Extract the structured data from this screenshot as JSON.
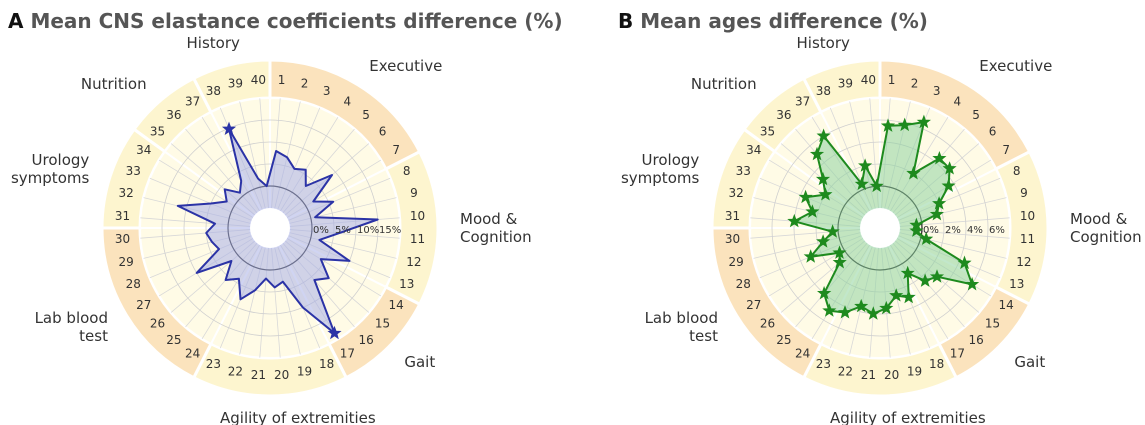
{
  "chart_data": [
    {
      "type": "radar",
      "panel": "A",
      "title": "Mean CNS elastance coefficients difference (%)",
      "categories": [
        "1",
        "2",
        "3",
        "4",
        "5",
        "6",
        "7",
        "8",
        "9",
        "10",
        "11",
        "12",
        "13",
        "14",
        "15",
        "16",
        "17",
        "18",
        "19",
        "20",
        "21",
        "22",
        "23",
        "24",
        "25",
        "26",
        "27",
        "28",
        "29",
        "30",
        "31",
        "32",
        "33",
        "34",
        "35",
        "36",
        "37",
        "38",
        "39",
        "40"
      ],
      "values": [
        8,
        7,
        5,
        6,
        3,
        9,
        2,
        6,
        1,
        15,
        6,
        2,
        10,
        4,
        8,
        6,
        18.5,
        10,
        3,
        4,
        2,
        5,
        8,
        4,
        6,
        2,
        10,
        3,
        4,
        5,
        3,
        12,
        5,
        2,
        4,
        1,
        3,
        14.8,
        2,
        0
      ],
      "color": "#2b33a6",
      "fill": "#aab1e8",
      "starred": [
        "17",
        "38"
      ],
      "ylim": [
        -5,
        20
      ],
      "yticks": [
        {
          "value": 0,
          "label": "0%"
        },
        {
          "value": 5,
          "label": "5%"
        },
        {
          "value": 10,
          "label": "10%"
        },
        {
          "value": 15,
          "label": "15%"
        }
      ],
      "groups": [
        {
          "label": "Executive",
          "first": 1,
          "last": 7,
          "color": "#fbe3bd"
        },
        {
          "label": "Mood & Cognition",
          "first": 8,
          "last": 13,
          "color": "#fdf5cf"
        },
        {
          "label": "Gait",
          "first": 14,
          "last": 17,
          "color": "#fbe3bd"
        },
        {
          "label": "Agility of extremities",
          "first": 18,
          "last": 23,
          "color": "#fdf5cf"
        },
        {
          "label": "Lab blood test",
          "first": 24,
          "last": 30,
          "color": "#fbe3bd"
        },
        {
          "label": "Urology symptoms",
          "first": 31,
          "last": 34,
          "color": "#fdf5cf"
        },
        {
          "label": "Nutrition",
          "first": 35,
          "last": 37,
          "color": "#fdf5cf"
        },
        {
          "label": "History",
          "first": 38,
          "last": 40,
          "color": "#fdf5cf"
        }
      ]
    },
    {
      "type": "radar",
      "panel": "B",
      "title": "Mean ages difference (%)",
      "categories": [
        "1",
        "2",
        "3",
        "4",
        "5",
        "6",
        "7",
        "8",
        "9",
        "10",
        "11",
        "12",
        "13",
        "14",
        "15",
        "16",
        "17",
        "18",
        "19",
        "20",
        "21",
        "22",
        "23",
        "24",
        "25",
        "26",
        "27",
        "28",
        "29",
        "30",
        "31",
        "32",
        "33",
        "34",
        "35",
        "36",
        "37",
        "38",
        "39",
        "40"
      ],
      "values": [
        5.5,
        5.8,
        6.6,
        2,
        4.5,
        4.5,
        3.5,
        2,
        1.5,
        -0.5,
        -0.5,
        0.5,
        4.5,
        6,
        3,
        2.5,
        1,
        3,
        2.5,
        3.5,
        4,
        3.5,
        4.5,
        5,
        4,
        1,
        0.5,
        3,
        1.5,
        0.5,
        4,
        2.5,
        3.5,
        2,
        3,
        5,
        6,
        0.5,
        2,
        0
      ],
      "color": "#1e8a1e",
      "fill": "#8fd4a0",
      "marker": "star",
      "ylim": [
        -2,
        8
      ],
      "yticks": [
        {
          "value": 0,
          "label": "0%"
        },
        {
          "value": 2,
          "label": "2%"
        },
        {
          "value": 4,
          "label": "4%"
        },
        {
          "value": 6,
          "label": "6%"
        }
      ],
      "groups": [
        {
          "label": "Executive",
          "first": 1,
          "last": 7,
          "color": "#fbe3bd"
        },
        {
          "label": "Mood & Cognition",
          "first": 8,
          "last": 13,
          "color": "#fdf5cf"
        },
        {
          "label": "Gait",
          "first": 14,
          "last": 17,
          "color": "#fbe3bd"
        },
        {
          "label": "Agility of extremities",
          "first": 18,
          "last": 23,
          "color": "#fdf5cf"
        },
        {
          "label": "Lab blood test",
          "first": 24,
          "last": 30,
          "color": "#fbe3bd"
        },
        {
          "label": "Urology symptoms",
          "first": 31,
          "last": 34,
          "color": "#fdf5cf"
        },
        {
          "label": "Nutrition",
          "first": 35,
          "last": 37,
          "color": "#fdf5cf"
        },
        {
          "label": "History",
          "first": 38,
          "last": 40,
          "color": "#fdf5cf"
        }
      ]
    }
  ]
}
